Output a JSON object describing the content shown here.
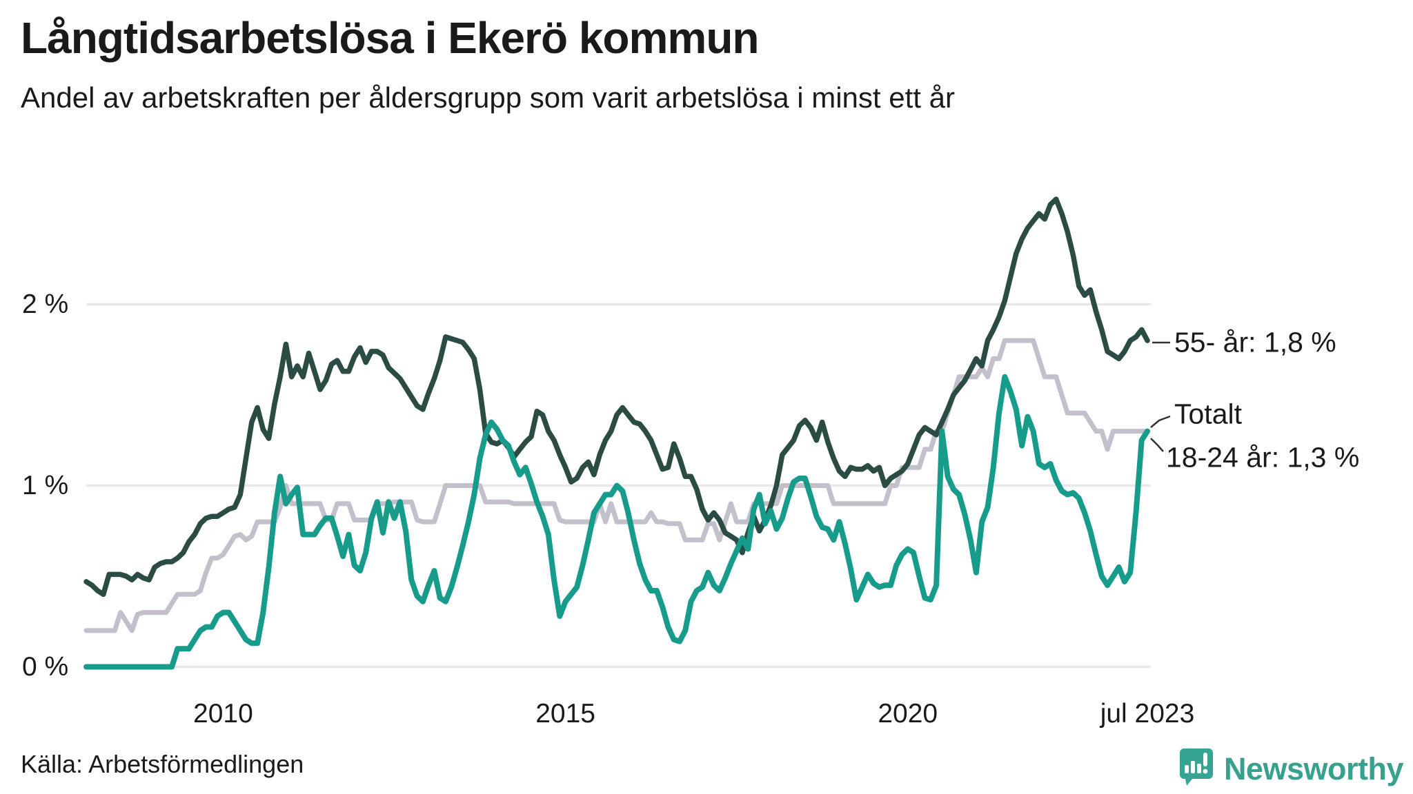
{
  "title": "Långtidsarbetslösa i Ekerö kommun",
  "subtitle": "Andel av arbetskraften per åldersgrupp som varit arbetslösa i minst ett år",
  "source": "Källa: Arbetsförmedlingen",
  "branding": {
    "logo_text": "Newsworthy",
    "logo_color": "#38a18e",
    "icon_color": "#35a492"
  },
  "colors": {
    "series_55": "#2b4c44",
    "series_total": "#c3bfcb",
    "series_young": "#179b8b",
    "gridline": "#e8e7ea",
    "text": "#1a1a19",
    "background": "#ffffff",
    "connector": "#333333"
  },
  "chart_data": {
    "type": "line",
    "title": "Långtidsarbetslösa i Ekerö kommun",
    "subtitle": "Andel av arbetskraften per åldersgrupp som varit arbetslösa i minst ett år",
    "x_start": "2008-01",
    "x_end": "2023-07",
    "frequency": "monthly",
    "n_points": 187,
    "ylabel": "",
    "ylim": [
      0,
      2.7
    ],
    "grid": "horizontal",
    "yticks": [
      {
        "value": 0,
        "label": "0 %"
      },
      {
        "value": 1,
        "label": "1 %"
      },
      {
        "value": 2,
        "label": "2 %"
      }
    ],
    "xticks": [
      {
        "month_index": 24,
        "label": "2010"
      },
      {
        "month_index": 84,
        "label": "2015"
      },
      {
        "month_index": 144,
        "label": "2020"
      },
      {
        "month_index": 186,
        "label": "jul 2023"
      }
    ],
    "legend_position": "end-of-line-labels",
    "series": [
      {
        "name": "Totalt",
        "end_label": "Totalt",
        "end_value": 1.3,
        "color": "#c3bfcb",
        "values": [
          0.2,
          0.2,
          0.2,
          0.2,
          0.2,
          0.2,
          0.3,
          0.25,
          0.2,
          0.29,
          0.3,
          0.3,
          0.3,
          0.3,
          0.3,
          0.35,
          0.4,
          0.4,
          0.4,
          0.4,
          0.42,
          0.52,
          0.6,
          0.6,
          0.62,
          0.67,
          0.72,
          0.73,
          0.7,
          0.72,
          0.8,
          0.8,
          0.8,
          0.8,
          0.88,
          1.0,
          0.9,
          0.9,
          0.9,
          0.9,
          0.9,
          0.9,
          0.81,
          0.81,
          0.9,
          0.9,
          0.9,
          0.81,
          0.81,
          0.81,
          0.81,
          0.9,
          0.9,
          0.9,
          0.91,
          0.91,
          0.91,
          0.91,
          0.81,
          0.8,
          0.8,
          0.8,
          0.9,
          1.0,
          1.0,
          1.0,
          1.0,
          1.0,
          1.0,
          1.0,
          0.91,
          0.91,
          0.91,
          0.91,
          0.91,
          0.9,
          0.9,
          0.9,
          0.9,
          0.9,
          0.9,
          0.9,
          0.9,
          0.81,
          0.8,
          0.8,
          0.8,
          0.8,
          0.8,
          0.8,
          0.9,
          0.8,
          0.9,
          0.8,
          0.8,
          0.8,
          0.8,
          0.8,
          0.8,
          0.85,
          0.8,
          0.8,
          0.79,
          0.79,
          0.79,
          0.7,
          0.7,
          0.7,
          0.7,
          0.79,
          0.79,
          0.7,
          0.8,
          0.9,
          0.8,
          0.8,
          0.8,
          0.9,
          0.9,
          0.9,
          0.9,
          0.9,
          1.0,
          1.0,
          1.0,
          1.0,
          1.0,
          1.0,
          1.0,
          1.0,
          1.0,
          0.9,
          0.9,
          0.9,
          0.9,
          0.9,
          0.9,
          0.9,
          0.9,
          0.9,
          0.9,
          1.0,
          1.0,
          1.1,
          1.1,
          1.1,
          1.1,
          1.2,
          1.2,
          1.3,
          1.3,
          1.4,
          1.5,
          1.6,
          1.6,
          1.6,
          1.6,
          1.65,
          1.6,
          1.7,
          1.7,
          1.8,
          1.8,
          1.8,
          1.8,
          1.8,
          1.8,
          1.7,
          1.6,
          1.6,
          1.6,
          1.5,
          1.4,
          1.4,
          1.4,
          1.4,
          1.35,
          1.3,
          1.3,
          1.2,
          1.3,
          1.3,
          1.3,
          1.3,
          1.3,
          1.3,
          1.3
        ]
      },
      {
        "name": "55- år",
        "end_label": "55- år: 1,8 %",
        "end_value": 1.8,
        "color": "#2b4c44",
        "values": [
          0.47,
          0.45,
          0.42,
          0.4,
          0.51,
          0.51,
          0.51,
          0.5,
          0.48,
          0.51,
          0.49,
          0.48,
          0.55,
          0.57,
          0.58,
          0.58,
          0.6,
          0.63,
          0.69,
          0.73,
          0.79,
          0.82,
          0.83,
          0.83,
          0.85,
          0.87,
          0.88,
          0.95,
          1.15,
          1.35,
          1.43,
          1.31,
          1.26,
          1.45,
          1.6,
          1.78,
          1.6,
          1.66,
          1.6,
          1.73,
          1.63,
          1.53,
          1.58,
          1.67,
          1.69,
          1.63,
          1.63,
          1.71,
          1.76,
          1.68,
          1.74,
          1.74,
          1.72,
          1.65,
          1.62,
          1.59,
          1.54,
          1.49,
          1.44,
          1.42,
          1.51,
          1.59,
          1.69,
          1.82,
          1.81,
          1.8,
          1.79,
          1.75,
          1.7,
          1.53,
          1.29,
          1.24,
          1.23,
          1.25,
          1.21,
          1.16,
          1.2,
          1.24,
          1.27,
          1.41,
          1.39,
          1.3,
          1.25,
          1.17,
          1.1,
          1.02,
          1.04,
          1.1,
          1.13,
          1.06,
          1.17,
          1.25,
          1.3,
          1.39,
          1.43,
          1.39,
          1.35,
          1.34,
          1.3,
          1.25,
          1.17,
          1.09,
          1.1,
          1.23,
          1.15,
          1.05,
          1.05,
          0.98,
          0.87,
          0.81,
          0.85,
          0.81,
          0.74,
          0.72,
          0.7,
          0.63,
          0.74,
          0.83,
          0.75,
          0.81,
          0.89,
          1.0,
          1.17,
          1.21,
          1.25,
          1.33,
          1.36,
          1.32,
          1.25,
          1.35,
          1.24,
          1.15,
          1.08,
          1.05,
          1.1,
          1.09,
          1.09,
          1.11,
          1.08,
          1.1,
          1.0,
          1.04,
          1.06,
          1.08,
          1.12,
          1.2,
          1.28,
          1.32,
          1.3,
          1.28,
          1.35,
          1.42,
          1.5,
          1.54,
          1.58,
          1.64,
          1.7,
          1.66,
          1.8,
          1.86,
          1.93,
          2.02,
          2.15,
          2.28,
          2.36,
          2.42,
          2.46,
          2.5,
          2.47,
          2.55,
          2.58,
          2.5,
          2.4,
          2.27,
          2.1,
          2.05,
          2.08,
          1.96,
          1.86,
          1.74,
          1.72,
          1.7,
          1.74,
          1.8,
          1.82,
          1.86,
          1.8
        ]
      },
      {
        "name": "18-24 år",
        "end_label": "18-24 år: 1,3 %",
        "end_value": 1.3,
        "color": "#179b8b",
        "values": [
          0.0,
          0.0,
          0.0,
          0.0,
          0.0,
          0.0,
          0.0,
          0.0,
          0.0,
          0.0,
          0.0,
          0.0,
          0.0,
          0.0,
          0.0,
          0.0,
          0.1,
          0.1,
          0.1,
          0.15,
          0.2,
          0.22,
          0.22,
          0.28,
          0.3,
          0.3,
          0.25,
          0.2,
          0.15,
          0.13,
          0.13,
          0.3,
          0.55,
          0.85,
          1.05,
          0.9,
          0.95,
          0.99,
          0.73,
          0.73,
          0.73,
          0.78,
          0.82,
          0.82,
          0.72,
          0.61,
          0.73,
          0.56,
          0.53,
          0.63,
          0.82,
          0.91,
          0.74,
          0.91,
          0.82,
          0.91,
          0.75,
          0.48,
          0.39,
          0.36,
          0.45,
          0.53,
          0.38,
          0.36,
          0.44,
          0.55,
          0.67,
          0.8,
          0.95,
          1.15,
          1.28,
          1.35,
          1.31,
          1.25,
          1.22,
          1.13,
          1.06,
          1.1,
          1.01,
          0.91,
          0.83,
          0.73,
          0.48,
          0.28,
          0.36,
          0.4,
          0.44,
          0.56,
          0.7,
          0.85,
          0.9,
          0.95,
          0.95,
          1.0,
          0.97,
          0.85,
          0.7,
          0.57,
          0.48,
          0.42,
          0.42,
          0.33,
          0.22,
          0.15,
          0.14,
          0.2,
          0.36,
          0.42,
          0.44,
          0.52,
          0.45,
          0.42,
          0.49,
          0.57,
          0.64,
          0.71,
          0.65,
          0.87,
          0.95,
          0.79,
          0.86,
          0.76,
          0.82,
          0.93,
          1.02,
          1.04,
          1.04,
          0.94,
          0.83,
          0.77,
          0.76,
          0.7,
          0.8,
          0.68,
          0.54,
          0.37,
          0.44,
          0.51,
          0.46,
          0.44,
          0.45,
          0.45,
          0.56,
          0.62,
          0.65,
          0.63,
          0.5,
          0.38,
          0.37,
          0.45,
          1.3,
          1.05,
          0.98,
          0.95,
          0.84,
          0.7,
          0.52,
          0.8,
          0.88,
          1.1,
          1.4,
          1.6,
          1.52,
          1.42,
          1.22,
          1.38,
          1.3,
          1.12,
          1.1,
          1.12,
          1.03,
          0.97,
          0.95,
          0.96,
          0.93,
          0.85,
          0.75,
          0.62,
          0.5,
          0.45,
          0.5,
          0.55,
          0.47,
          0.52,
          0.85,
          1.25,
          1.3
        ]
      }
    ]
  }
}
